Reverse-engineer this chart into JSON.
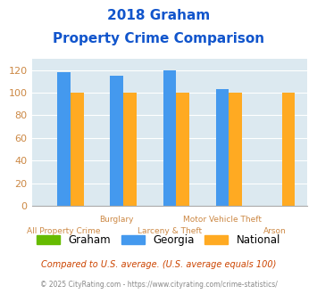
{
  "title_line1": "2018 Graham",
  "title_line2": "Property Crime Comparison",
  "categories": [
    "All Property Crime",
    "Burglary",
    "Larceny & Theft",
    "Motor Vehicle Theft",
    "Arson"
  ],
  "graham": [
    0,
    0,
    0,
    0,
    0
  ],
  "georgia": [
    118,
    115,
    120,
    103,
    0
  ],
  "national": [
    100,
    100,
    100,
    100,
    100
  ],
  "colors": {
    "graham": "#66bb00",
    "georgia": "#4499ee",
    "national": "#ffaa22"
  },
  "ylim": [
    0,
    130
  ],
  "yticks": [
    0,
    20,
    40,
    60,
    80,
    100,
    120
  ],
  "footnote1": "Compared to U.S. average. (U.S. average equals 100)",
  "footnote2": "© 2025 CityRating.com - https://www.cityrating.com/crime-statistics/",
  "bg_color": "#dce9f0",
  "title_color": "#1155cc",
  "tick_color": "#cc8844",
  "footnote1_color": "#cc4400",
  "footnote2_color": "#888888"
}
